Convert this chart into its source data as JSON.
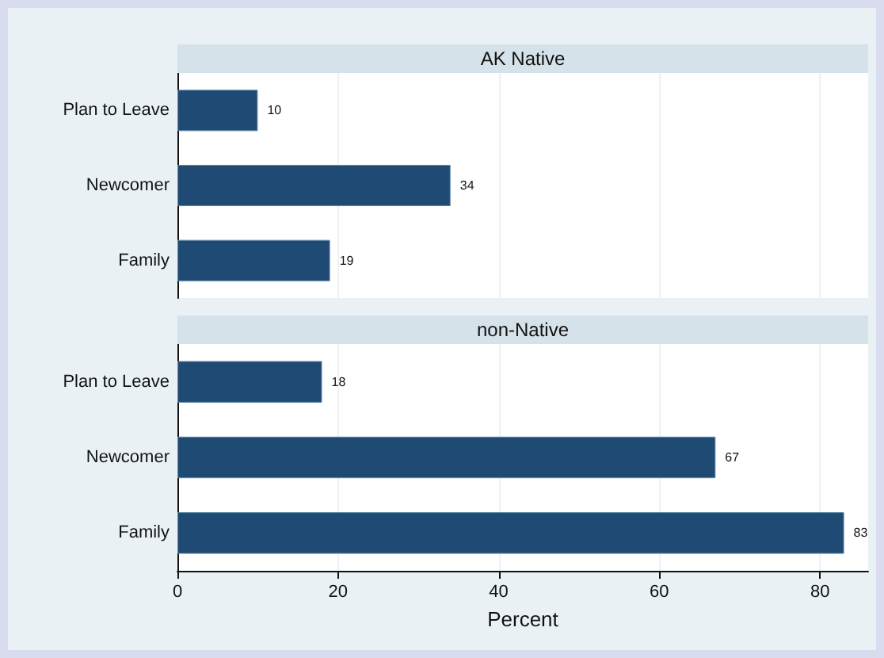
{
  "chart_data": [
    {
      "type": "bar",
      "title": "AK Native",
      "orientation": "horizontal",
      "categories": [
        "Plan to Leave",
        "Newcomer",
        "Family"
      ],
      "values": [
        10,
        34,
        19
      ],
      "color": "#1f4a73",
      "xlim": [
        0,
        86
      ],
      "xticks": [
        0,
        20,
        40,
        60,
        80
      ],
      "grid": "x",
      "data_labels": true,
      "tick_labels": "y"
    },
    {
      "type": "bar",
      "title": "non-Native",
      "xlabel": "Percent",
      "orientation": "horizontal",
      "categories": [
        "Plan to Leave",
        "Newcomer",
        "Family"
      ],
      "values": [
        18,
        67,
        83
      ],
      "color": "#1f4a73",
      "xlim": [
        0,
        86
      ],
      "xticks": [
        0,
        20,
        40,
        60,
        80
      ],
      "grid": "x",
      "data_labels": true
    }
  ]
}
